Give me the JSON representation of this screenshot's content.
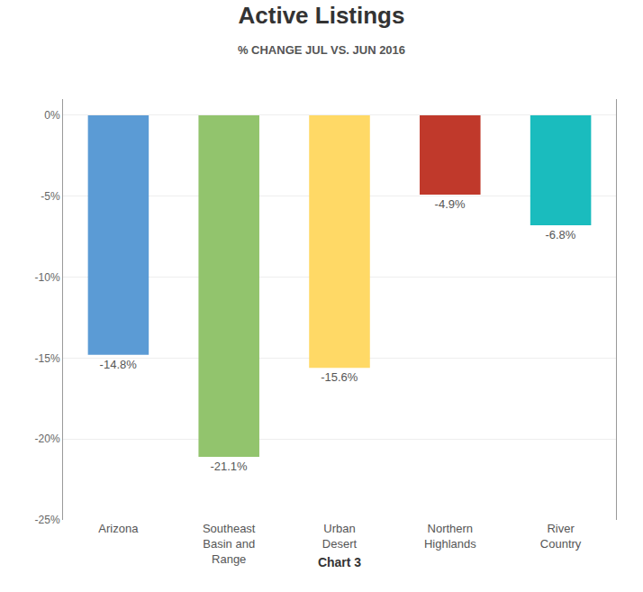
{
  "chart_data": {
    "type": "bar",
    "title": "Active Listings",
    "subtitle": "% CHANGE JUL VS. JUN 2016",
    "categories": [
      "Arizona",
      "Southeast\nBasin and\nRange",
      "Urban\nDesert",
      "Northern\nHighlands",
      "River\nCountry"
    ],
    "values": [
      -14.8,
      -21.1,
      -15.6,
      -4.9,
      -6.8
    ],
    "value_labels": [
      "-14.8%",
      "-21.1%",
      "-15.6%",
      "-4.9%",
      "-6.8%"
    ],
    "data_labels": true,
    "colors": [
      "#5B9BD5",
      "#92C46D",
      "#FFD966",
      "#C0392B",
      "#1ABCBE"
    ],
    "xlabel": "Chart 3",
    "ylim": [
      -25,
      1
    ],
    "yticks": [
      {
        "value": 0,
        "label": "0%"
      },
      {
        "value": -5,
        "label": "-5%"
      },
      {
        "value": -10,
        "label": "-10%"
      },
      {
        "value": -15,
        "label": "-15%"
      },
      {
        "value": -20,
        "label": "-20%"
      },
      {
        "value": -25,
        "label": "-25%"
      }
    ],
    "grid": true
  }
}
